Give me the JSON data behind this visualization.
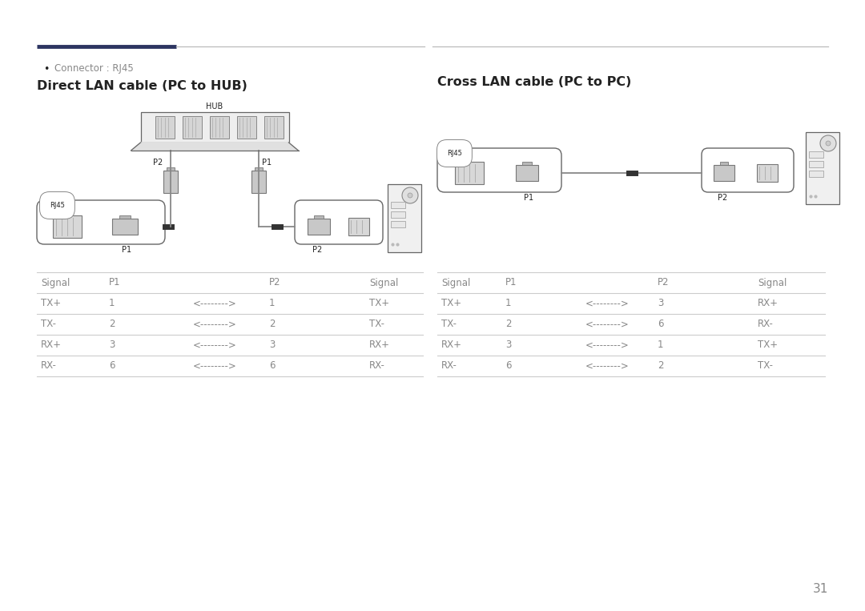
{
  "bg_color": "#ffffff",
  "text_color": "#222222",
  "gray_color": "#888888",
  "dark_gray": "#555555",
  "line_color": "#cccccc",
  "header_line_dark": "#2d3561",
  "header_line_light": "#bbbbbb",
  "page_number": "31",
  "bullet_text": "Connector : RJ45",
  "left_title": "Direct LAN cable (PC to HUB)",
  "right_title": "Cross LAN cable (PC to PC)",
  "direct_table": {
    "headers": [
      "Signal",
      "P1",
      "",
      "P2",
      "Signal"
    ],
    "col_offsets": [
      5,
      90,
      195,
      290,
      415
    ],
    "rows": [
      [
        "TX+",
        "1",
        "<-------->",
        "1",
        "TX+"
      ],
      [
        "TX-",
        "2",
        "<-------->",
        "2",
        "TX-"
      ],
      [
        "RX+",
        "3",
        "<-------->",
        "3",
        "RX+"
      ],
      [
        "RX-",
        "6",
        "<-------->",
        "6",
        "RX-"
      ]
    ]
  },
  "cross_table": {
    "headers": [
      "Signal",
      "P1",
      "",
      "P2",
      "Signal"
    ],
    "col_offsets": [
      5,
      85,
      185,
      275,
      400
    ],
    "rows": [
      [
        "TX+",
        "1",
        "<-------->",
        "3",
        "RX+"
      ],
      [
        "TX-",
        "2",
        "<-------->",
        "6",
        "RX-"
      ],
      [
        "RX+",
        "3",
        "<-------->",
        "1",
        "TX+"
      ],
      [
        "RX-",
        "6",
        "<-------->",
        "2",
        "TX-"
      ]
    ]
  }
}
